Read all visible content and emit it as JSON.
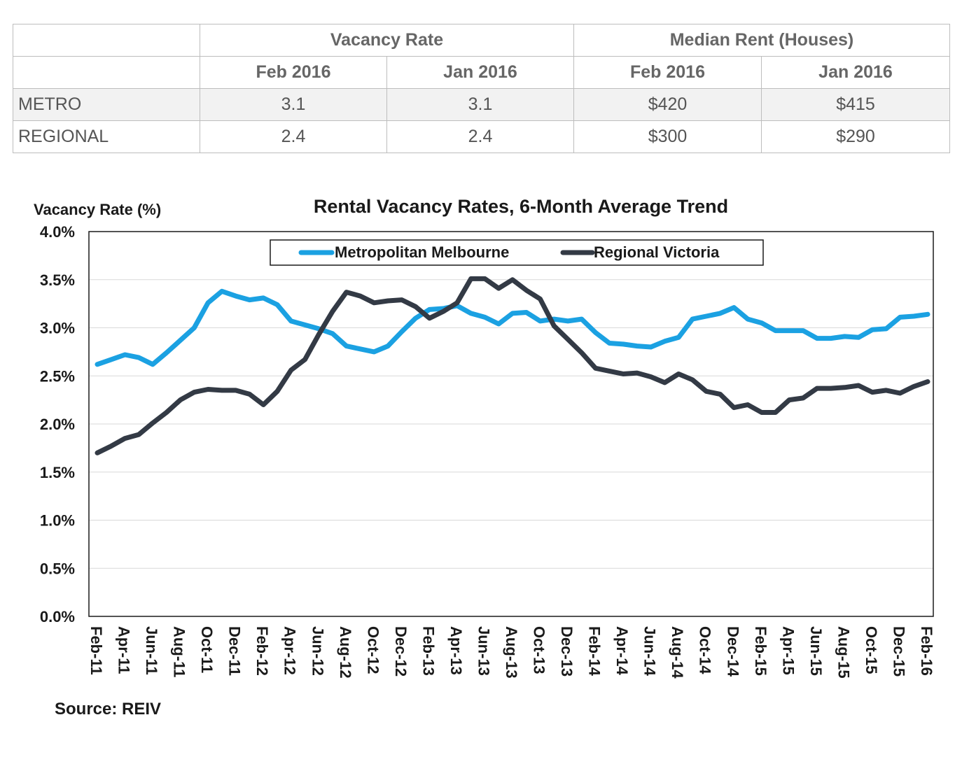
{
  "table": {
    "group_headers": [
      "",
      "Vacancy Rate",
      "Median Rent (Houses)"
    ],
    "sub_headers": [
      "",
      "Feb 2016",
      "Jan 2016",
      "Feb 2016",
      "Jan 2016"
    ],
    "rows": [
      {
        "label": "METRO",
        "cells": [
          "3.1",
          "3.1",
          "$420",
          "$415"
        ]
      },
      {
        "label": "REGIONAL",
        "cells": [
          "2.4",
          "2.4",
          "$300",
          "$290"
        ]
      }
    ]
  },
  "chart_data": {
    "type": "line",
    "title": "Rental Vacancy Rates, 6-Month Average Trend",
    "ylabel": "Vacancy Rate (%)",
    "xlabel": "",
    "ylim": [
      0,
      4
    ],
    "y_ticks": [
      "0.0%",
      "0.5%",
      "1.0%",
      "1.5%",
      "2.0%",
      "2.5%",
      "3.0%",
      "3.5%",
      "4.0%"
    ],
    "x_tick_labels": [
      "Feb-11",
      "Apr-11",
      "Jun-11",
      "Aug-11",
      "Oct-11",
      "Dec-11",
      "Feb-12",
      "Apr-12",
      "Jun-12",
      "Aug-12",
      "Oct-12",
      "Dec-12",
      "Feb-13",
      "Apr-13",
      "Jun-13",
      "Aug-13",
      "Oct-13",
      "Dec-13",
      "Feb-14",
      "Apr-14",
      "Jun-14",
      "Aug-14",
      "Oct-14",
      "Dec-14",
      "Feb-15",
      "Apr-15",
      "Jun-15",
      "Aug-15",
      "Oct-15",
      "Dec-15",
      "Feb-16"
    ],
    "x": [
      "Feb-11",
      "Mar-11",
      "Apr-11",
      "May-11",
      "Jun-11",
      "Jul-11",
      "Aug-11",
      "Sep-11",
      "Oct-11",
      "Nov-11",
      "Dec-11",
      "Jan-12",
      "Feb-12",
      "Mar-12",
      "Apr-12",
      "May-12",
      "Jun-12",
      "Jul-12",
      "Aug-12",
      "Sep-12",
      "Oct-12",
      "Nov-12",
      "Dec-12",
      "Jan-13",
      "Feb-13",
      "Mar-13",
      "Apr-13",
      "May-13",
      "Jun-13",
      "Jul-13",
      "Aug-13",
      "Sep-13",
      "Oct-13",
      "Nov-13",
      "Dec-13",
      "Jan-14",
      "Feb-14",
      "Mar-14",
      "Apr-14",
      "May-14",
      "Jun-14",
      "Jul-14",
      "Aug-14",
      "Sep-14",
      "Oct-14",
      "Nov-14",
      "Dec-14",
      "Jan-15",
      "Feb-15",
      "Mar-15",
      "Apr-15",
      "May-15",
      "Jun-15",
      "Jul-15",
      "Aug-15",
      "Sep-15",
      "Oct-15",
      "Nov-15",
      "Dec-15",
      "Jan-16",
      "Feb-16"
    ],
    "series": [
      {
        "name": "Metropolitan Melbourne",
        "color": "#1ba1e2",
        "values": [
          2.62,
          2.67,
          2.72,
          2.69,
          2.62,
          2.74,
          2.87,
          3.0,
          3.26,
          3.38,
          3.33,
          3.29,
          3.31,
          3.24,
          3.07,
          3.03,
          2.99,
          2.94,
          2.81,
          2.78,
          2.75,
          2.81,
          2.96,
          3.1,
          3.19,
          3.2,
          3.23,
          3.15,
          3.11,
          3.04,
          3.15,
          3.16,
          3.07,
          3.09,
          3.07,
          3.09,
          2.95,
          2.84,
          2.83,
          2.81,
          2.8,
          2.86,
          2.9,
          3.09,
          3.12,
          3.15,
          3.21,
          3.09,
          3.05,
          2.97,
          2.97,
          2.97,
          2.89,
          2.89,
          2.91,
          2.9,
          2.98,
          2.99,
          3.11,
          3.12,
          3.14
        ]
      },
      {
        "name": "Regional Victoria",
        "color": "#333a45",
        "values": [
          1.7,
          1.77,
          1.85,
          1.89,
          2.01,
          2.12,
          2.25,
          2.33,
          2.36,
          2.35,
          2.35,
          2.31,
          2.2,
          2.34,
          2.56,
          2.67,
          2.93,
          3.17,
          3.37,
          3.33,
          3.26,
          3.28,
          3.29,
          3.22,
          3.1,
          3.17,
          3.26,
          3.51,
          3.51,
          3.41,
          3.5,
          3.39,
          3.3,
          3.02,
          2.88,
          2.74,
          2.58,
          2.55,
          2.52,
          2.53,
          2.49,
          2.43,
          2.52,
          2.46,
          2.34,
          2.31,
          2.17,
          2.2,
          2.12,
          2.12,
          2.25,
          2.27,
          2.37,
          2.37,
          2.38,
          2.4,
          2.33,
          2.35,
          2.32,
          2.39,
          2.44
        ]
      }
    ],
    "legend_position": "top-center",
    "grid": true
  },
  "source": "Source:  REIV"
}
